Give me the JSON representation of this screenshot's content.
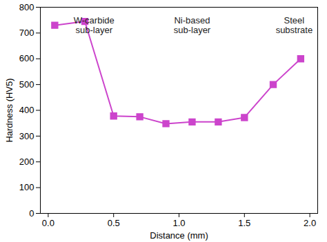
{
  "chart_data": {
    "type": "line",
    "x_label": "Distance (mm)",
    "y_label": "Hardness (HV5)",
    "x": [
      0.05,
      0.28,
      0.5,
      0.7,
      0.9,
      1.1,
      1.3,
      1.5,
      1.72,
      1.93
    ],
    "values": [
      730,
      745,
      378,
      375,
      348,
      355,
      355,
      372,
      500,
      600
    ],
    "color": "#cc44cc",
    "marker": "square",
    "xlim": [
      -0.06,
      2.06
    ],
    "ylim": [
      0,
      800
    ],
    "xticks": [
      {
        "value": 0,
        "label": "0.0"
      },
      0.5,
      {
        "value": 1,
        "label": "1.0"
      },
      1.5,
      {
        "value": 2,
        "label": "2.0"
      }
    ],
    "yticks": [
      0,
      100,
      200,
      300,
      400,
      500,
      600,
      700,
      800
    ],
    "grid": false,
    "annotations": [
      {
        "text": "W-carbide\nsub-layer",
        "x": 0.35,
        "y": 730
      },
      {
        "text": "Ni-based\nsub-layer",
        "x": 1.1,
        "y": 730
      },
      {
        "text": "Steel\nsubstrate",
        "x": 1.88,
        "y": 730
      }
    ]
  }
}
